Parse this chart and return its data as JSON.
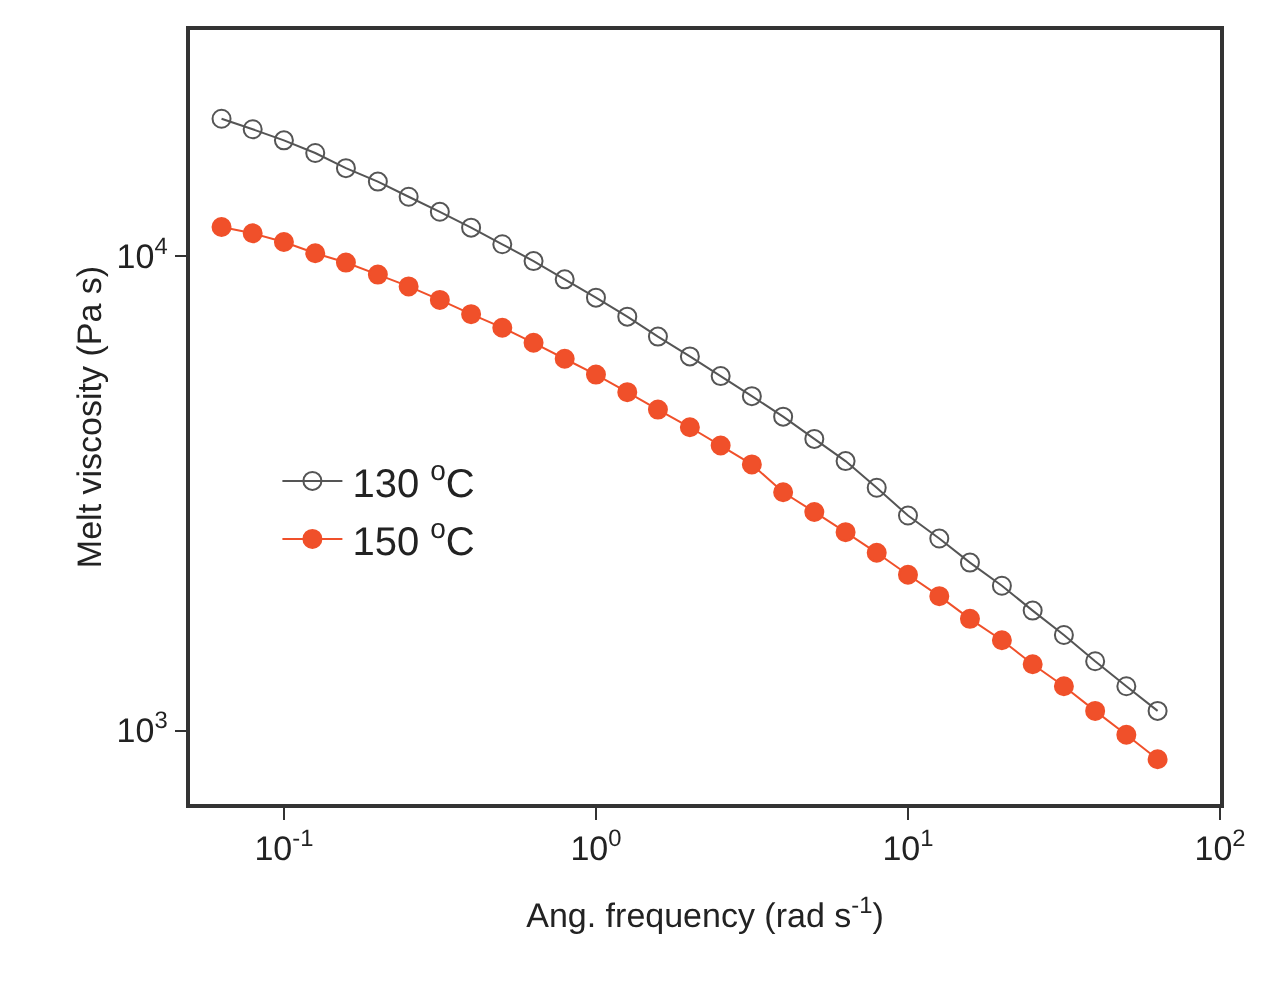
{
  "chart_data": {
    "type": "line",
    "xlabel": "Ang. frequency (rad s$^{-1}$)",
    "ylabel": "Melt viscosity (Pa s)",
    "x": [
      0.0631,
      0.0794,
      0.1,
      0.126,
      0.158,
      0.2,
      0.251,
      0.316,
      0.398,
      0.501,
      0.631,
      0.794,
      1,
      1.26,
      1.58,
      2,
      2.51,
      3.16,
      3.98,
      5.01,
      6.31,
      7.94,
      10,
      12.6,
      15.8,
      20,
      25.1,
      31.6,
      39.8,
      50.1,
      63.1
    ],
    "series": [
      {
        "name": "130 $^{o}$C",
        "color": "#555555",
        "marker": "circle-open",
        "values": [
          19500,
          18530,
          17560,
          16510,
          15340,
          14370,
          13350,
          12410,
          11490,
          10600,
          9770,
          8940,
          8180,
          7460,
          6770,
          6150,
          5590,
          5070,
          4590,
          4120,
          3700,
          3250,
          2840,
          2540,
          2260,
          2020,
          1790,
          1590,
          1400,
          1240,
          1100
        ]
      },
      {
        "name": "150 $^{o}$C",
        "color": "#f0502a",
        "marker": "circle",
        "values": [
          11530,
          11180,
          10720,
          10150,
          9700,
          9150,
          8640,
          8090,
          7550,
          7070,
          6570,
          6080,
          5630,
          5170,
          4750,
          4360,
          3990,
          3640,
          3180,
          2890,
          2620,
          2370,
          2130,
          1920,
          1720,
          1550,
          1380,
          1240,
          1100,
          980,
          870
        ]
      }
    ],
    "log": "xy",
    "xlim": [
      0.05,
      100
    ],
    "ylim": [
      700,
      30000
    ],
    "xticks": [
      {
        "value": 0.1,
        "label": "10$^{-1}$"
      },
      {
        "value": 1,
        "label": "10$^{0}$"
      },
      {
        "value": 10,
        "label": "10$^{1}$"
      },
      {
        "value": 100,
        "label": "10$^{2}$"
      }
    ],
    "yticks": [
      {
        "value": 1000,
        "label": "10$^{3}$"
      },
      {
        "value": 10000,
        "label": "10$^{4}$"
      }
    ],
    "grid": false,
    "legend": "left",
    "line_style": "solid"
  }
}
